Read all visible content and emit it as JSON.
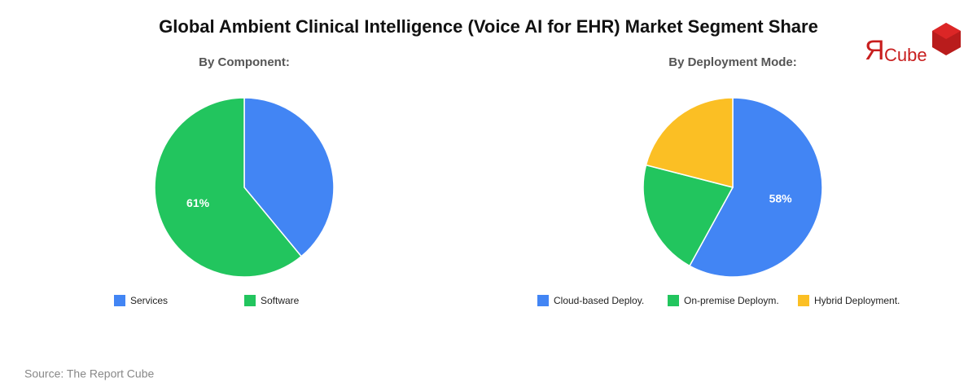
{
  "title": "Global Ambient Clinical Intelligence (Voice AI for EHR) Market Segment Share",
  "logo": {
    "mark": "Я",
    "text": "Cube"
  },
  "source": "Source: The Report Cube",
  "chart_data": [
    {
      "type": "pie",
      "title": "By Component:",
      "categories": [
        "Services",
        "Software"
      ],
      "values": [
        39,
        61
      ],
      "value_labels": [
        null,
        "61%"
      ],
      "colors": [
        "#4285f4",
        "#22c55e"
      ],
      "legend": "bottom"
    },
    {
      "type": "pie",
      "title": "By Deployment Mode:",
      "categories": [
        "Cloud-based Deploy.",
        "On-premise Deploym.",
        "Hybrid Deployment."
      ],
      "values": [
        58,
        21,
        21
      ],
      "value_labels": [
        "58%",
        null,
        null
      ],
      "colors": [
        "#4285f4",
        "#22c55e",
        "#fbbf24"
      ],
      "legend": "bottom"
    }
  ]
}
